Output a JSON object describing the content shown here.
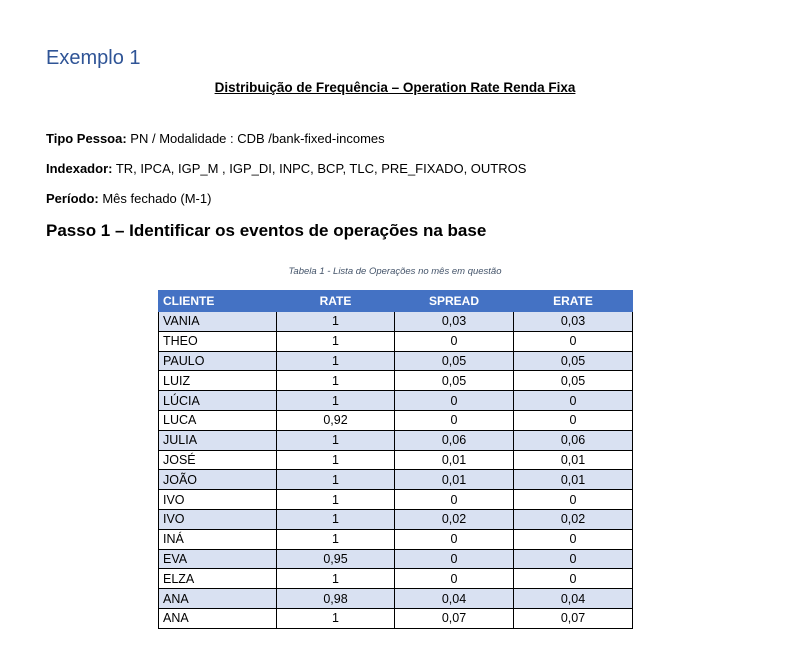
{
  "heading1": "Exemplo 1",
  "doc_title": "Distribuição de Frequência – Operation Rate Renda Fixa",
  "fields": {
    "tipo_pessoa": {
      "label": "Tipo Pessoa:",
      "value": " PN / Modalidade : CDB /bank-fixed-incomes"
    },
    "indexador": {
      "label": "Indexador:",
      "value": " TR, IPCA, IGP_M , IGP_DI, INPC, BCP, TLC, PRE_FIXADO, OUTROS"
    },
    "periodo": {
      "label": "Período:",
      "value": " Mês fechado (M-1)"
    }
  },
  "heading2": "Passo 1 – Identificar os eventos de operações na base",
  "table": {
    "caption": "Tabela 1 - Lista de Operações no mês em questão",
    "headers": [
      "CLIENTE",
      "RATE",
      "SPREAD",
      "ERATE"
    ],
    "rows": [
      [
        "VANIA",
        "1",
        "0,03",
        "0,03"
      ],
      [
        "THEO",
        "1",
        "0",
        "0"
      ],
      [
        "PAULO",
        "1",
        "0,05",
        "0,05"
      ],
      [
        "LUIZ",
        "1",
        "0,05",
        "0,05"
      ],
      [
        "LÚCIA",
        "1",
        "0",
        "0"
      ],
      [
        "LUCA",
        "0,92",
        "0",
        "0"
      ],
      [
        "JULIA",
        "1",
        "0,06",
        "0,06"
      ],
      [
        "JOSÉ",
        "1",
        "0,01",
        "0,01"
      ],
      [
        "JOÃO",
        "1",
        "0,01",
        "0,01"
      ],
      [
        "IVO",
        "1",
        "0",
        "0"
      ],
      [
        "IVO",
        "1",
        "0,02",
        "0,02"
      ],
      [
        "INÁ",
        "1",
        "0",
        "0"
      ],
      [
        "EVA",
        "0,95",
        "0",
        "0"
      ],
      [
        "ELZA",
        "1",
        "0",
        "0"
      ],
      [
        "ANA",
        "0,98",
        "0,04",
        "0,04"
      ],
      [
        "ANA",
        "1",
        "0,07",
        "0,07"
      ]
    ]
  }
}
